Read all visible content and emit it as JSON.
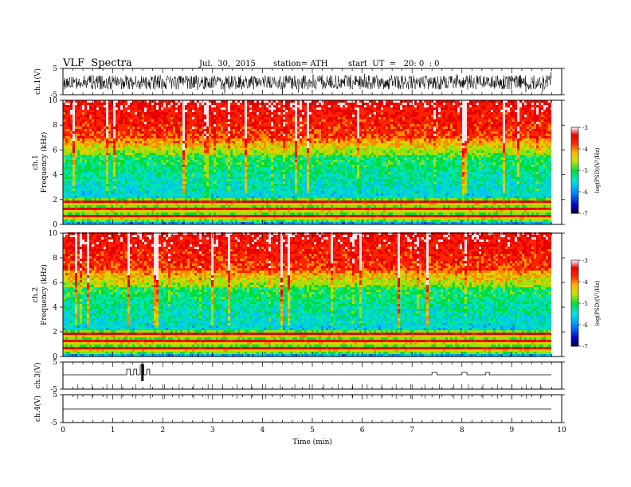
{
  "header": {
    "title": "VLF  Spectra",
    "date": "Jul.  30,  2015",
    "station": "station= ATH",
    "start": "start  UT  =   20: 0  : 0"
  },
  "chart_data": [
    {
      "type": "line",
      "panel": "ch1-waveform",
      "ylabel": "ch.1(V)",
      "ylim": [
        -5,
        5
      ],
      "yticks": [
        "5",
        "-5"
      ],
      "series_color": "#000000"
    },
    {
      "type": "heatmap",
      "panel": "ch1-spectrogram",
      "ylabel_top": "ch.1",
      "ylabel": "Frequency  (kHz)",
      "ylim": [
        0,
        10
      ],
      "yticks": [
        "0",
        "2",
        "4",
        "6",
        "8",
        "10"
      ],
      "colorbar": {
        "label": "log(PSD)(V²/Hz)",
        "range": [
          -7,
          -3
        ],
        "ticks": [
          "-3",
          "-4",
          "-5",
          "-6",
          "-7"
        ]
      }
    },
    {
      "type": "heatmap",
      "panel": "ch2-spectrogram",
      "ylabel_top": "ch.2",
      "ylabel": "Frequency  (kHz)",
      "ylim": [
        0,
        10
      ],
      "yticks": [
        "0",
        "2",
        "4",
        "6",
        "8",
        "10"
      ],
      "colorbar": {
        "label": "log(PSD)(V²/Hz)",
        "range": [
          -7,
          -3
        ],
        "ticks": [
          "-3",
          "-4",
          "-5",
          "-6",
          "-7"
        ]
      }
    },
    {
      "type": "line",
      "panel": "ch3-waveform",
      "ylabel": "ch.3(V)",
      "ylim": [
        -5,
        5
      ],
      "yticks": [
        "5",
        "-5"
      ]
    },
    {
      "type": "line",
      "panel": "ch4-waveform",
      "ylabel": "ch.4(V)",
      "ylim": [
        -5,
        5
      ],
      "yticks": [
        "5",
        "-5"
      ]
    }
  ],
  "xaxis": {
    "label": "Time  (min)",
    "range": [
      0,
      10
    ],
    "ticks": [
      "0",
      "1",
      "2",
      "3",
      "4",
      "5",
      "6",
      "7",
      "8",
      "9",
      "10"
    ]
  }
}
